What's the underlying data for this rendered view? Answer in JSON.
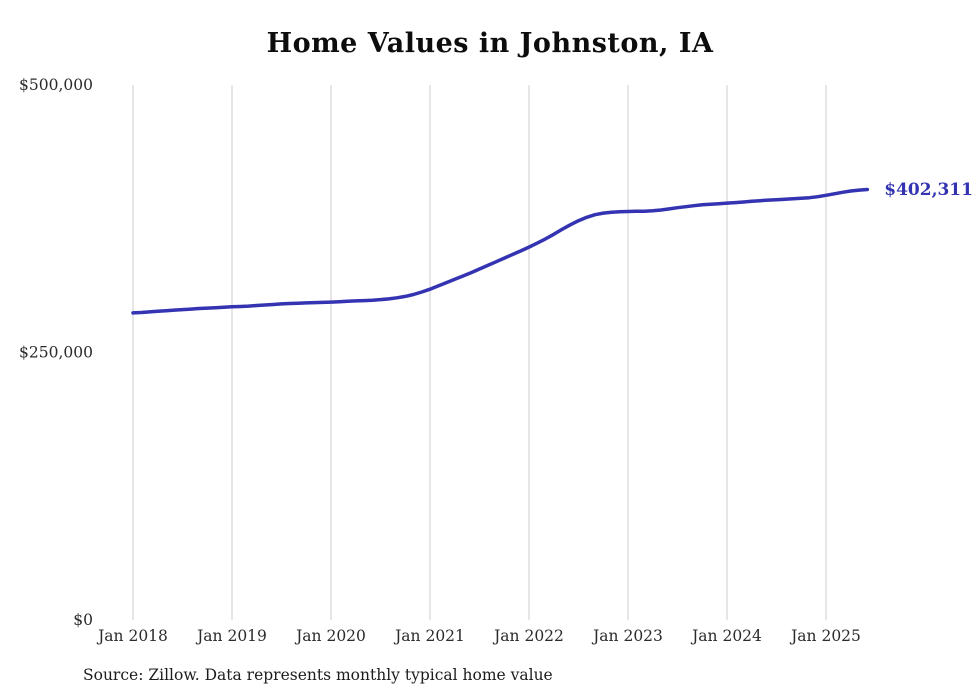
{
  "chart_data": {
    "type": "line",
    "title": "Home Values in Johnston, IA",
    "source": "Source: Zillow. Data represents monthly typical home value",
    "end_label": "$402,311",
    "end_value": 402311,
    "line_color": "#3434b2",
    "grid_color": "#cccccc",
    "ylim": [
      0,
      500000
    ],
    "grid": "vertical-only",
    "legend": "none",
    "x_start": "Jan 2018",
    "x_end": "Jun 2025",
    "x_tick_labels": [
      "Jan 2018",
      "Jan 2019",
      "Jan 2020",
      "Jan 2021",
      "Jan 2022",
      "Jan 2023",
      "Jan 2024",
      "Jan 2025"
    ],
    "x_tick_month_indices": [
      0,
      12,
      24,
      36,
      48,
      60,
      72,
      84
    ],
    "y_ticks": [
      {
        "value": 0,
        "label": "$0"
      },
      {
        "value": 250000,
        "label": "$250,000"
      },
      {
        "value": 500000,
        "label": "$500,000"
      }
    ],
    "series": [
      {
        "name": "Monthly typical home value",
        "values": [
          287000,
          287400,
          287900,
          288500,
          289100,
          289600,
          290100,
          290600,
          291100,
          291500,
          291900,
          292300,
          292700,
          293000,
          293400,
          293900,
          294400,
          294900,
          295400,
          295800,
          296100,
          296400,
          296600,
          296800,
          297100,
          297500,
          297900,
          298200,
          298500,
          298900,
          299400,
          300100,
          301100,
          302400,
          304200,
          306500,
          309200,
          312200,
          315300,
          318400,
          321500,
          324700,
          328000,
          331400,
          334800,
          338200,
          341600,
          345000,
          348500,
          352200,
          356200,
          360500,
          365000,
          369300,
          373200,
          376400,
          378800,
          380300,
          381100,
          381500,
          381800,
          382100,
          382000,
          382400,
          383200,
          384200,
          385300,
          386300,
          387200,
          388000,
          388600,
          389100,
          389600,
          390100,
          390700,
          391300,
          391900,
          392400,
          392800,
          393200,
          393600,
          394100,
          394700,
          395600,
          396900,
          398300,
          399700,
          400900,
          401800,
          402311
        ]
      }
    ]
  }
}
